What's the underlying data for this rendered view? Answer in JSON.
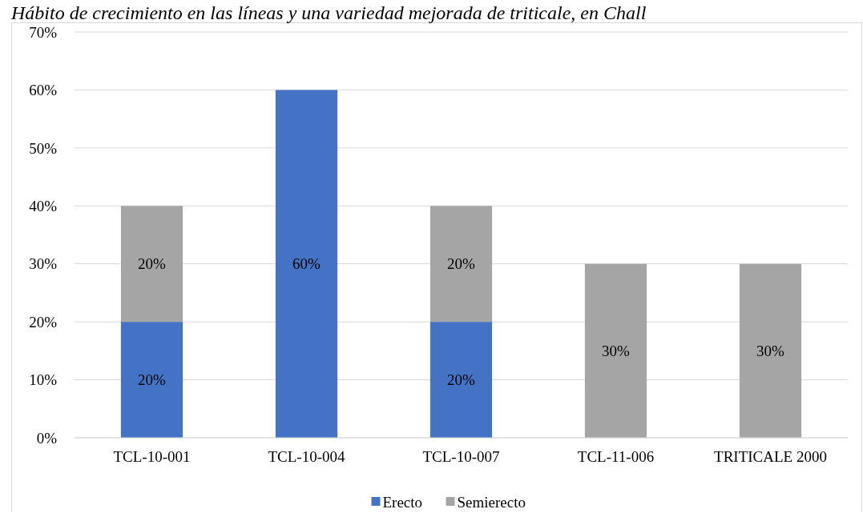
{
  "chart_data": {
    "type": "bar",
    "title": "Hábito de crecimiento en las líneas y una variedad mejorada de triticale, en Chall",
    "categories": [
      "TCL-10-001",
      "TCL-10-004",
      "TCL-10-007",
      "TCL-11-006",
      "TRITICALE 2000"
    ],
    "series": [
      {
        "name": "Erecto",
        "color": "#4472c4",
        "values": [
          20,
          60,
          20,
          0,
          0
        ],
        "value_labels": [
          "20%",
          "60%",
          "20%",
          null,
          null
        ]
      },
      {
        "name": "Semierecto",
        "color": "#a5a5a5",
        "values": [
          20,
          0,
          20,
          30,
          30
        ],
        "value_labels": [
          "20%",
          null,
          "20%",
          "30%",
          "30%"
        ]
      }
    ],
    "stacked": true,
    "ylim": [
      0,
      70
    ],
    "yticks": [
      {
        "value": 0,
        "label": "0%"
      },
      {
        "value": 10,
        "label": "10%"
      },
      {
        "value": 20,
        "label": "20%"
      },
      {
        "value": 30,
        "label": "30%"
      },
      {
        "value": 40,
        "label": "40%"
      },
      {
        "value": 50,
        "label": "50%"
      },
      {
        "value": 60,
        "label": "60%"
      },
      {
        "value": 70,
        "label": "70%"
      }
    ],
    "grid": "y",
    "legend": "bottom"
  }
}
